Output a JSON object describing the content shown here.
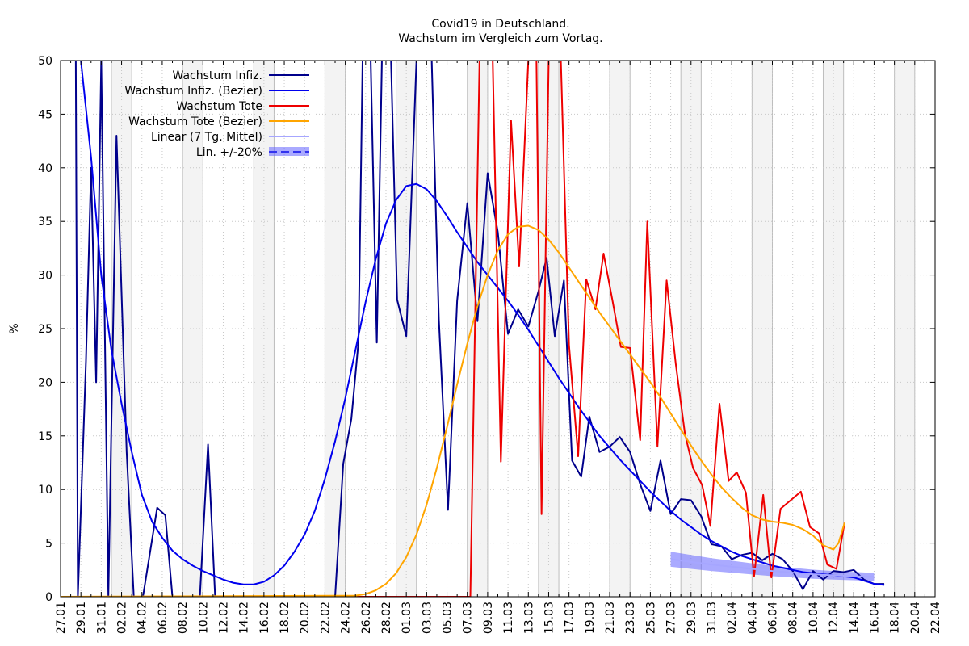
{
  "chart_data": {
    "type": "line",
    "title": "Covid19 in Deutschland.",
    "subtitle": "Wachstum im Vergleich zum Vortag.",
    "xlabel": "",
    "ylabel": "%",
    "ylim": [
      0,
      50
    ],
    "yticks": [
      "0",
      "5",
      "10",
      "15",
      "20",
      "25",
      "30",
      "35",
      "40",
      "45",
      "50"
    ],
    "xlim_days": [
      0,
      86
    ],
    "xticks": [
      "27.01",
      "29.01",
      "31.01",
      "02.02",
      "04.02",
      "06.02",
      "08.02",
      "10.02",
      "12.02",
      "14.02",
      "16.02",
      "18.02",
      "20.02",
      "22.02",
      "24.02",
      "26.02",
      "28.02",
      "01.03",
      "03.03",
      "05.03",
      "07.03",
      "09.03",
      "11.03",
      "13.03",
      "15.03",
      "17.03",
      "19.03",
      "21.03",
      "23.03",
      "25.03",
      "27.03",
      "29.03",
      "31.03",
      "02.04",
      "04.04",
      "06.04",
      "08.04",
      "10.04",
      "12.04",
      "14.04",
      "16.04",
      "18.04",
      "20.04",
      "22.04"
    ],
    "grid": true,
    "legend_position": "top-left",
    "weekend_shading": true,
    "series": [
      {
        "name": "Wachstum Infiz.",
        "color": "#00008b",
        "style": "line",
        "points": [
          [
            1.5,
            60
          ],
          [
            1.7,
            0
          ],
          [
            2.5,
            22
          ],
          [
            3,
            40
          ],
          [
            3.5,
            20
          ],
          [
            4,
            58
          ],
          [
            4.7,
            0
          ],
          [
            5.5,
            43
          ],
          [
            6.5,
            13.5
          ],
          [
            7.2,
            0
          ],
          [
            8.1,
            0
          ],
          [
            9.5,
            8.3
          ],
          [
            10.3,
            7.6
          ],
          [
            11,
            0
          ],
          [
            13.7,
            0
          ],
          [
            14.5,
            14.2
          ],
          [
            15.2,
            0
          ],
          [
            27,
            0
          ],
          [
            27.8,
            12.4
          ],
          [
            28.6,
            16.6
          ],
          [
            29.3,
            23.8
          ],
          [
            29.7,
            60
          ],
          [
            30.5,
            60
          ],
          [
            31.1,
            23.7
          ],
          [
            31.6,
            60
          ],
          [
            32.5,
            60
          ],
          [
            33.1,
            27.7
          ],
          [
            34,
            24.3
          ],
          [
            35,
            60
          ],
          [
            36.5,
            60
          ],
          [
            37.2,
            25.9
          ],
          [
            38.1,
            8.1
          ],
          [
            39,
            27.6
          ],
          [
            40,
            36.7
          ],
          [
            41,
            25.7
          ],
          [
            42,
            39.5
          ],
          [
            43,
            34
          ],
          [
            44,
            24.5
          ],
          [
            45,
            26.8
          ],
          [
            46,
            25.2
          ],
          [
            47,
            28.5
          ],
          [
            47.8,
            31.6
          ],
          [
            48.6,
            24.3
          ],
          [
            49.5,
            29.5
          ],
          [
            50.3,
            12.7
          ],
          [
            51.2,
            11.2
          ],
          [
            52,
            16.8
          ],
          [
            53,
            13.5
          ],
          [
            54,
            14
          ],
          [
            55,
            14.9
          ],
          [
            56,
            13.5
          ],
          [
            57,
            10.5
          ],
          [
            58,
            8.0
          ],
          [
            59,
            12.7
          ],
          [
            60,
            7.7
          ],
          [
            61,
            9.1
          ],
          [
            62,
            9.0
          ],
          [
            63,
            7.5
          ],
          [
            64,
            4.9
          ],
          [
            65,
            4.7
          ],
          [
            66,
            3.5
          ],
          [
            67,
            3.9
          ],
          [
            68,
            4.1
          ],
          [
            69,
            3.4
          ],
          [
            70,
            4.0
          ],
          [
            71,
            3.5
          ],
          [
            72,
            2.4
          ],
          [
            73,
            0.7
          ],
          [
            74,
            2.4
          ],
          [
            75,
            1.6
          ],
          [
            76,
            2.4
          ],
          [
            77,
            2.3
          ],
          [
            78,
            2.5
          ],
          [
            79,
            1.6
          ],
          [
            80,
            1.2
          ],
          [
            81,
            1.2
          ]
        ]
      },
      {
        "name": "Wachstum Infiz. (Bezier)",
        "color": "#0000ee",
        "style": "line",
        "points": [
          [
            2,
            60
          ],
          [
            3,
            41
          ],
          [
            4,
            30
          ],
          [
            5,
            23
          ],
          [
            6,
            18
          ],
          [
            7,
            13.5
          ],
          [
            8,
            9.5
          ],
          [
            9,
            7.0
          ],
          [
            10,
            5.5
          ],
          [
            11,
            4.3
          ],
          [
            12,
            3.5
          ],
          [
            13,
            2.9
          ],
          [
            14,
            2.4
          ],
          [
            15,
            2.0
          ],
          [
            16,
            1.6
          ],
          [
            17,
            1.3
          ],
          [
            18,
            1.15
          ],
          [
            19,
            1.15
          ],
          [
            20,
            1.4
          ],
          [
            21,
            2.0
          ],
          [
            22,
            2.9
          ],
          [
            23,
            4.2
          ],
          [
            24,
            5.8
          ],
          [
            25,
            8.0
          ],
          [
            26,
            11
          ],
          [
            27,
            14.5
          ],
          [
            28,
            18.5
          ],
          [
            29,
            23
          ],
          [
            30,
            27.5
          ],
          [
            31,
            31.5
          ],
          [
            32,
            34.8
          ],
          [
            33,
            37
          ],
          [
            34,
            38.3
          ],
          [
            35,
            38.5
          ],
          [
            36,
            38
          ],
          [
            37,
            36.9
          ],
          [
            38,
            35.5
          ],
          [
            39,
            34
          ],
          [
            40,
            32.6
          ],
          [
            41,
            31.2
          ],
          [
            42,
            30.0
          ],
          [
            43,
            28.8
          ],
          [
            44,
            27.6
          ],
          [
            45,
            26.3
          ],
          [
            46,
            24.9
          ],
          [
            47,
            23.4
          ],
          [
            48,
            21.9
          ],
          [
            49,
            20.4
          ],
          [
            50,
            19.0
          ],
          [
            51,
            17.6
          ],
          [
            52,
            16.3
          ],
          [
            53,
            15.0
          ],
          [
            54,
            13.9
          ],
          [
            55,
            12.8
          ],
          [
            56,
            11.8
          ],
          [
            57,
            10.8
          ],
          [
            58,
            9.8
          ],
          [
            59,
            8.9
          ],
          [
            60,
            8.0
          ],
          [
            61,
            7.2
          ],
          [
            62,
            6.5
          ],
          [
            63,
            5.8
          ],
          [
            64,
            5.2
          ],
          [
            65,
            4.7
          ],
          [
            66,
            4.2
          ],
          [
            67,
            3.8
          ],
          [
            68,
            3.5
          ],
          [
            69,
            3.2
          ],
          [
            70,
            2.9
          ],
          [
            71,
            2.7
          ],
          [
            72,
            2.5
          ],
          [
            73,
            2.3
          ],
          [
            74,
            2.2
          ],
          [
            75,
            2.1
          ],
          [
            76,
            2.0
          ],
          [
            77,
            1.9
          ],
          [
            78,
            1.8
          ],
          [
            79,
            1.5
          ],
          [
            80,
            1.2
          ],
          [
            81,
            1.1
          ]
        ]
      },
      {
        "name": "Wachstum Tote",
        "color": "#ee0000",
        "style": "line",
        "points": [
          [
            0,
            0
          ],
          [
            39.5,
            0
          ],
          [
            40.3,
            0
          ],
          [
            41.2,
            60
          ],
          [
            42.5,
            60
          ],
          [
            43.3,
            12.6
          ],
          [
            44.3,
            44.4
          ],
          [
            45.1,
            30.8
          ],
          [
            46,
            60
          ],
          [
            46.8,
            60
          ],
          [
            47.3,
            7.7
          ],
          [
            48,
            60
          ],
          [
            49.2,
            60
          ],
          [
            50,
            23.5
          ],
          [
            50.9,
            13.1
          ],
          [
            51.7,
            29.6
          ],
          [
            52.6,
            26.8
          ],
          [
            53.4,
            32
          ],
          [
            54.3,
            27.5
          ],
          [
            55.1,
            23.3
          ],
          [
            56,
            23.2
          ],
          [
            57,
            14.6
          ],
          [
            57.7,
            35
          ],
          [
            58.7,
            14.0
          ],
          [
            59.6,
            29.5
          ],
          [
            60.5,
            21.7
          ],
          [
            61.4,
            15.2
          ],
          [
            62.2,
            12.0
          ],
          [
            63.1,
            10.4
          ],
          [
            63.9,
            6.6
          ],
          [
            64.8,
            18.0
          ],
          [
            65.7,
            10.8
          ],
          [
            66.5,
            11.6
          ],
          [
            67.4,
            9.7
          ],
          [
            68.2,
            1.9
          ],
          [
            69.1,
            9.5
          ],
          [
            69.9,
            1.8
          ],
          [
            70.8,
            8.2
          ],
          [
            72.8,
            9.8
          ],
          [
            73.7,
            6.5
          ],
          [
            74.6,
            5.9
          ],
          [
            75.4,
            3.0
          ],
          [
            76.3,
            2.6
          ],
          [
            77.1,
            6.9
          ]
        ]
      },
      {
        "name": "Wachstum Tote (Bezier)",
        "color": "#ffa500",
        "style": "line",
        "points": [
          [
            0,
            0
          ],
          [
            29,
            0.1
          ],
          [
            30,
            0.25
          ],
          [
            31,
            0.6
          ],
          [
            32,
            1.2
          ],
          [
            33,
            2.2
          ],
          [
            34,
            3.7
          ],
          [
            35,
            5.8
          ],
          [
            36,
            8.6
          ],
          [
            37,
            12
          ],
          [
            38,
            15.8
          ],
          [
            39,
            19.8
          ],
          [
            40,
            23.6
          ],
          [
            41,
            27.1
          ],
          [
            42,
            30.0
          ],
          [
            43,
            32.3
          ],
          [
            44,
            33.8
          ],
          [
            45,
            34.5
          ],
          [
            46,
            34.6
          ],
          [
            47,
            34.2
          ],
          [
            48,
            33.3
          ],
          [
            49,
            32.1
          ],
          [
            50,
            30.7
          ],
          [
            51,
            29.3
          ],
          [
            52,
            27.9
          ],
          [
            53,
            26.5
          ],
          [
            54,
            25.2
          ],
          [
            55,
            23.9
          ],
          [
            56,
            22.6
          ],
          [
            57,
            21.3
          ],
          [
            58,
            20.0
          ],
          [
            59,
            18.6
          ],
          [
            60,
            17.1
          ],
          [
            61,
            15.6
          ],
          [
            62,
            14.1
          ],
          [
            63,
            12.7
          ],
          [
            64,
            11.4
          ],
          [
            65,
            10.2
          ],
          [
            66,
            9.2
          ],
          [
            67,
            8.3
          ],
          [
            68,
            7.6
          ],
          [
            69,
            7.2
          ],
          [
            70,
            7.0
          ],
          [
            71,
            6.9
          ],
          [
            72,
            6.7
          ],
          [
            73,
            6.3
          ],
          [
            74,
            5.7
          ],
          [
            75,
            4.8
          ],
          [
            76,
            4.4
          ],
          [
            76.5,
            5.0
          ],
          [
            77.1,
            6.9
          ]
        ]
      },
      {
        "name": "Linear (7 Tg. Mittel)",
        "color": "#a6a6ff",
        "style": "line",
        "points": [
          [
            60,
            3.5
          ],
          [
            62,
            3.25
          ],
          [
            64,
            3.0
          ],
          [
            66,
            2.8
          ],
          [
            68,
            2.6
          ],
          [
            70,
            2.4
          ],
          [
            72,
            2.25
          ],
          [
            74,
            2.1
          ],
          [
            76,
            2.0
          ],
          [
            80,
            1.85
          ]
        ]
      },
      {
        "name": "Lin. +/-20%",
        "color": "#6464ff",
        "style": "band",
        "points": [
          [
            60,
            3.5
          ],
          [
            62,
            3.25
          ],
          [
            64,
            3.0
          ],
          [
            66,
            2.8
          ],
          [
            68,
            2.6
          ],
          [
            70,
            2.4
          ],
          [
            72,
            2.25
          ],
          [
            74,
            2.1
          ],
          [
            76,
            2.0
          ],
          [
            80,
            1.85
          ]
        ],
        "band_fraction": 0.2
      }
    ]
  }
}
